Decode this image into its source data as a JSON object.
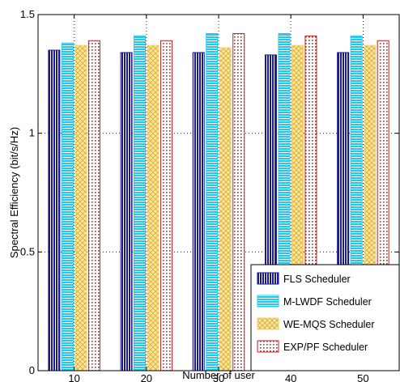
{
  "chart_data": {
    "type": "bar",
    "title": "",
    "xlabel": "Number of user",
    "ylabel": "Spectral Efficiency (bit/s/Hz)",
    "categories": [
      "10",
      "20",
      "30",
      "40",
      "50"
    ],
    "ylim": [
      0,
      1.5
    ],
    "yticks": [
      "0",
      "0.5",
      "1",
      "1.5"
    ],
    "grid": true,
    "legend_position": "bottom-right",
    "series": [
      {
        "name": "FLS Scheduler",
        "values": [
          1.35,
          1.34,
          1.34,
          1.33,
          1.34
        ],
        "color": "#1a1a8c",
        "pattern": "vertical-stripes"
      },
      {
        "name": "M-LWDF Scheduler",
        "values": [
          1.38,
          1.41,
          1.42,
          1.42,
          1.41
        ],
        "color": "#22c8ee",
        "pattern": "horizontal-stripes"
      },
      {
        "name": "WE-MQS Scheduler",
        "values": [
          1.37,
          1.37,
          1.36,
          1.37,
          1.37
        ],
        "color": "#f0d070",
        "pattern": "crosshatch"
      },
      {
        "name": "EXP/PF Scheduler",
        "values": [
          1.39,
          1.39,
          1.42,
          1.41,
          1.39
        ],
        "color": "#c02020",
        "pattern": "dots"
      }
    ]
  }
}
